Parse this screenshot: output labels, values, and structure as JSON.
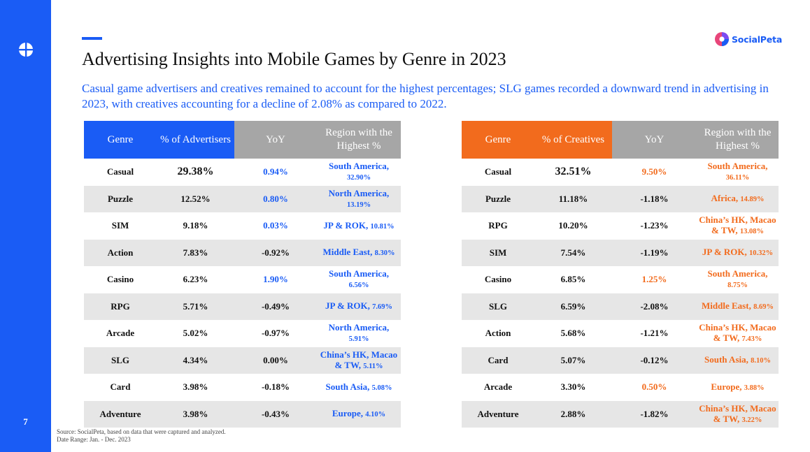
{
  "page_number": "7",
  "brand": {
    "name": "SocialPeta"
  },
  "title": "Advertising Insights into Mobile Games by Genre in 2023",
  "subtitle": "Casual game advertisers and creatives remained to account for the highest percentages; SLG games recorded a downward trend in advertising in 2023, with creatives accounting for a decline of 2.08% as compared to 2022.",
  "colors": {
    "blue": "#1a5cf5",
    "orange": "#f26b1d",
    "gray_header": "#a6a6a6",
    "row_gray": "#e6e6e6"
  },
  "advertisers_table": {
    "headers": [
      "Genre",
      "% of Advertisers",
      "YoY",
      "Region with the Highest %"
    ],
    "rows": [
      {
        "genre": "Casual",
        "pct": "29.38%",
        "yoy": "0.94%",
        "yoy_positive": true,
        "region": "South America,",
        "region_pct": "32.90%"
      },
      {
        "genre": "Puzzle",
        "pct": "12.52%",
        "yoy": "0.80%",
        "yoy_positive": true,
        "region": "North America,",
        "region_pct": "13.19%"
      },
      {
        "genre": "SIM",
        "pct": "9.18%",
        "yoy": "0.03%",
        "yoy_positive": true,
        "region": "JP & ROK,",
        "region_pct": "10.81%"
      },
      {
        "genre": "Action",
        "pct": "7.83%",
        "yoy": "-0.92%",
        "yoy_positive": false,
        "region": "Middle East,",
        "region_pct": "8.30%"
      },
      {
        "genre": "Casino",
        "pct": "6.23%",
        "yoy": "1.90%",
        "yoy_positive": true,
        "region": "South America,",
        "region_pct": "6.56%"
      },
      {
        "genre": "RPG",
        "pct": "5.71%",
        "yoy": "-0.49%",
        "yoy_positive": false,
        "region": "JP & ROK,",
        "region_pct": "7.69%"
      },
      {
        "genre": "Arcade",
        "pct": "5.02%",
        "yoy": "-0.97%",
        "yoy_positive": false,
        "region": "North America,",
        "region_pct": "5.91%"
      },
      {
        "genre": "SLG",
        "pct": "4.34%",
        "yoy": "0.00%",
        "yoy_positive": false,
        "region": "China’s HK, Macao & TW,",
        "region_pct": "5.11%"
      },
      {
        "genre": "Card",
        "pct": "3.98%",
        "yoy": "-0.18%",
        "yoy_positive": false,
        "region": "South Asia,",
        "region_pct": "5.08%"
      },
      {
        "genre": "Adventure",
        "pct": "3.98%",
        "yoy": "-0.43%",
        "yoy_positive": false,
        "region": "Europe,",
        "region_pct": "4.10%"
      }
    ]
  },
  "creatives_table": {
    "headers": [
      "Genre",
      "% of Creatives",
      "YoY",
      "Region with the Highest %"
    ],
    "rows": [
      {
        "genre": "Casual",
        "pct": "32.51%",
        "yoy": "9.50%",
        "yoy_positive": true,
        "region": "South America,",
        "region_pct": "36.11%"
      },
      {
        "genre": "Puzzle",
        "pct": "11.18%",
        "yoy": "-1.18%",
        "yoy_positive": false,
        "region": "Africa,",
        "region_pct": "14.89%"
      },
      {
        "genre": "RPG",
        "pct": "10.20%",
        "yoy": "-1.23%",
        "yoy_positive": false,
        "region": "China’s HK, Macao & TW,",
        "region_pct": "13.08%"
      },
      {
        "genre": "SIM",
        "pct": "7.54%",
        "yoy": "-1.19%",
        "yoy_positive": false,
        "region": "JP & ROK,",
        "region_pct": "10.32%"
      },
      {
        "genre": "Casino",
        "pct": "6.85%",
        "yoy": "1.25%",
        "yoy_positive": true,
        "region": "South America,",
        "region_pct": "8.75%"
      },
      {
        "genre": "SLG",
        "pct": "6.59%",
        "yoy": "-2.08%",
        "yoy_positive": false,
        "region": "Middle East,",
        "region_pct": "8.69%"
      },
      {
        "genre": "Action",
        "pct": "5.68%",
        "yoy": "-1.21%",
        "yoy_positive": false,
        "region": "China’s HK, Macao & TW,",
        "region_pct": "7.43%"
      },
      {
        "genre": "Card",
        "pct": "5.07%",
        "yoy": "-0.12%",
        "yoy_positive": false,
        "region": "South Asia,",
        "region_pct": "8.10%"
      },
      {
        "genre": "Arcade",
        "pct": "3.30%",
        "yoy": "0.50%",
        "yoy_positive": true,
        "region": "Europe,",
        "region_pct": "3.88%"
      },
      {
        "genre": "Adventure",
        "pct": "2.88%",
        "yoy": "-1.82%",
        "yoy_positive": false,
        "region": "China’s HK, Macao & TW,",
        "region_pct": "3.22%"
      }
    ]
  },
  "footer": {
    "source": "Source: SocialPeta, based on data that were captured and analyzed.",
    "date_range": "Date Range: Jan. - Dec. 2023"
  }
}
